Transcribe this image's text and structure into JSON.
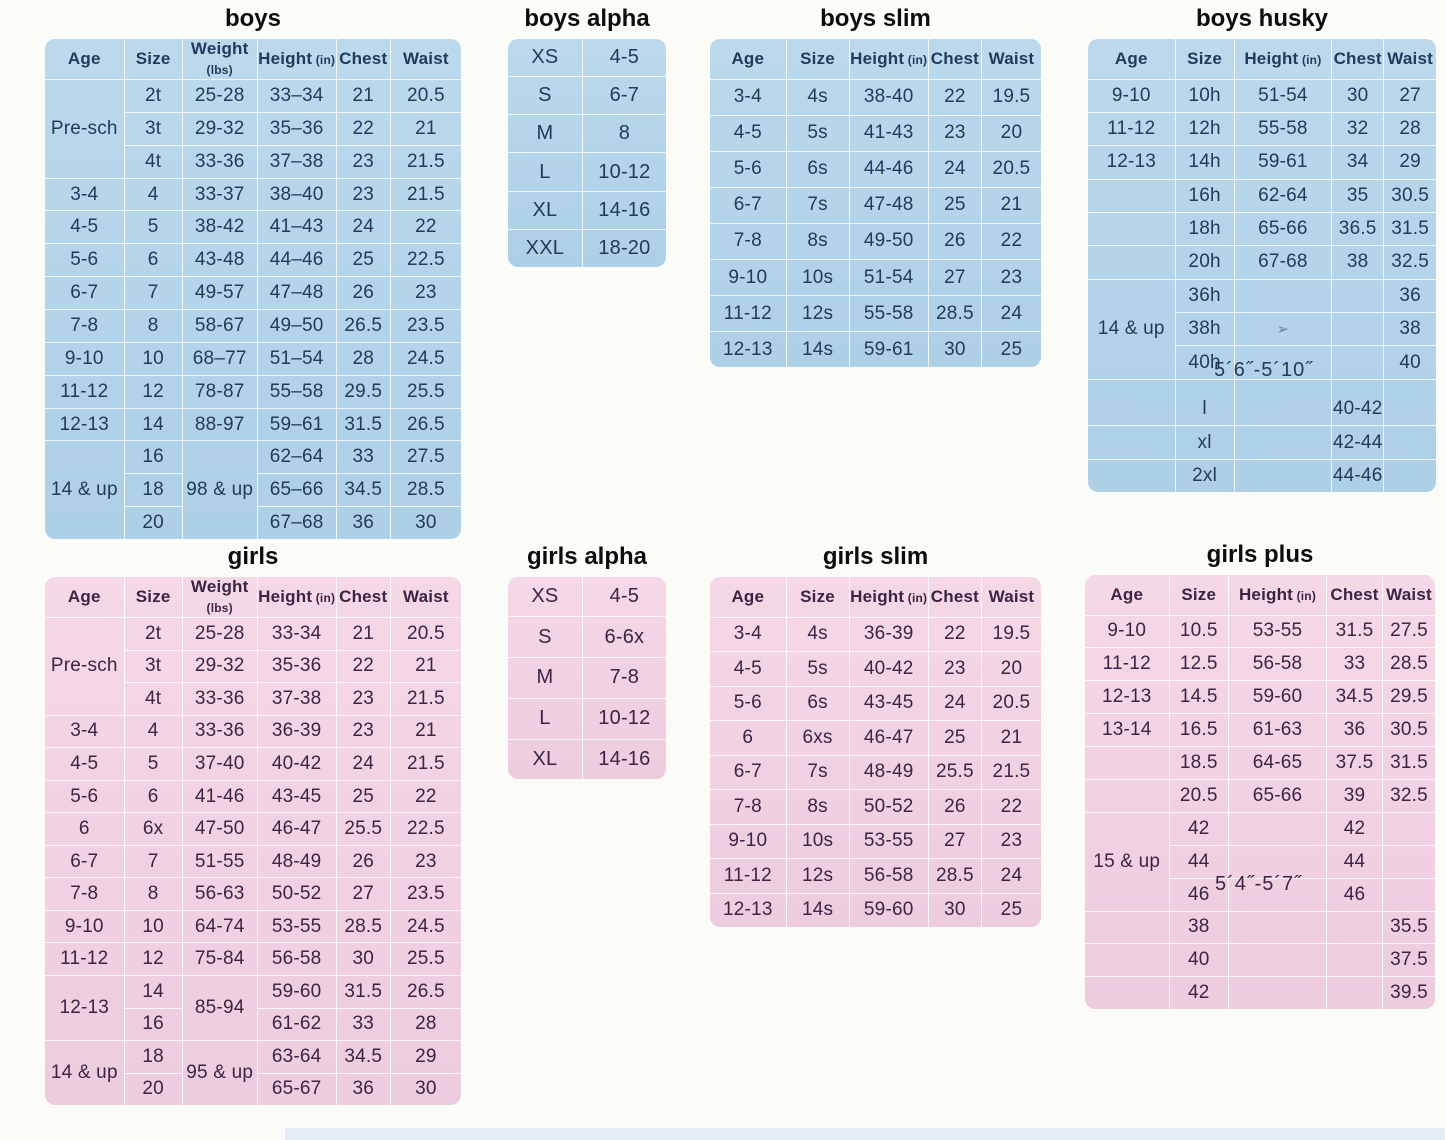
{
  "annotations": {
    "boys_husky_height_range": "5´6˝-5´10˝",
    "girls_plus_height_range": "5´4˝-5´7˝"
  },
  "tables": {
    "boys": {
      "title": "boys",
      "header": [
        {
          "t": "Age"
        },
        {
          "t": "Size"
        },
        {
          "t": "Weight",
          "u": "(lbs)"
        },
        {
          "t": "Height",
          "u": "(in)"
        },
        {
          "t": "Chest"
        },
        {
          "t": "Waist"
        }
      ],
      "colw": [
        "19%",
        "14%",
        "18%",
        "19%",
        "13%",
        "17%"
      ],
      "rows": [
        [
          {
            "t": "Pre-sch",
            "rs": 3
          },
          "2t",
          "25-28",
          "33–34",
          "21",
          "20.5"
        ],
        [
          "3t",
          "29-32",
          "35–36",
          "22",
          "21"
        ],
        [
          "4t",
          "33-36",
          "37–38",
          "23",
          "21.5"
        ],
        [
          "3-4",
          "4",
          "33-37",
          "38–40",
          "23",
          "21.5"
        ],
        [
          "4-5",
          "5",
          "38-42",
          "41–43",
          "24",
          "22"
        ],
        [
          "5-6",
          "6",
          "43-48",
          "44–46",
          "25",
          "22.5"
        ],
        [
          "6-7",
          "7",
          "49-57",
          "47–48",
          "26",
          "23"
        ],
        [
          "7-8",
          "8",
          "58-67",
          "49–50",
          "26.5",
          "23.5"
        ],
        [
          "9-10",
          "10",
          "68–77",
          "51–54",
          "28",
          "24.5"
        ],
        [
          "11-12",
          "12",
          "78-87",
          "55–58",
          "29.5",
          "25.5"
        ],
        [
          "12-13",
          "14",
          "88-97",
          "59–61",
          "31.5",
          "26.5"
        ],
        [
          {
            "t": "14 & up",
            "rs": 3,
            "cls": "nb"
          },
          "16",
          {
            "t": "98 & up",
            "rs": 3,
            "cls": "nb"
          },
          "62–64",
          "33",
          "27.5"
        ],
        [
          "18",
          "65–66",
          "34.5",
          "28.5"
        ],
        [
          "20",
          "67–68",
          "36",
          "30"
        ]
      ]
    },
    "boys_alpha": {
      "title": "boys alpha",
      "colw": [
        "47%",
        "53%"
      ],
      "rows": [
        [
          "XS",
          "4-5"
        ],
        [
          "S",
          "6-7"
        ],
        [
          "M",
          "8"
        ],
        [
          "L",
          "10-12"
        ],
        [
          "XL",
          "14-16"
        ],
        [
          "XXL",
          "18-20"
        ]
      ]
    },
    "boys_slim": {
      "title": "boys slim",
      "header": [
        {
          "t": "Age"
        },
        {
          "t": "Size"
        },
        {
          "t": "Height",
          "u": "(in)"
        },
        {
          "t": "Chest"
        },
        {
          "t": "Waist"
        }
      ],
      "colw": [
        "23%",
        "19%",
        "24%",
        "16%",
        "18%"
      ],
      "rows": [
        [
          "3-4",
          "4s",
          "38-40",
          "22",
          "19.5"
        ],
        [
          "4-5",
          "5s",
          "41-43",
          "23",
          "20"
        ],
        [
          "5-6",
          "6s",
          "44-46",
          "24",
          "20.5"
        ],
        [
          "6-7",
          "7s",
          "47-48",
          "25",
          "21"
        ],
        [
          "7-8",
          "8s",
          "49-50",
          "26",
          "22"
        ],
        [
          "9-10",
          "10s",
          "51-54",
          "27",
          "23"
        ],
        [
          "11-12",
          "12s",
          "55-58",
          "28.5",
          "24"
        ],
        [
          "12-13",
          "14s",
          "59-61",
          "30",
          "25"
        ]
      ]
    },
    "boys_husky": {
      "title": "boys husky",
      "header": [
        {
          "t": "Age"
        },
        {
          "t": "Size"
        },
        {
          "t": "Height",
          "u": "(in)"
        },
        {
          "t": "Chest"
        },
        {
          "t": "Waist"
        }
      ],
      "colw": [
        "25%",
        "17%",
        "28%",
        "15%",
        "15%"
      ],
      "rows": [
        [
          "9-10",
          "10h",
          "51-54",
          "30",
          "27"
        ],
        [
          "11-12",
          "12h",
          "55-58",
          "32",
          "28"
        ],
        [
          "12-13",
          "14h",
          "59-61",
          "34",
          "29"
        ],
        [
          "",
          "16h",
          "62-64",
          "35",
          "30.5"
        ],
        [
          "",
          "18h",
          "65-66",
          "36.5",
          "31.5"
        ],
        [
          "",
          "20h",
          "67-68",
          "38",
          "32.5"
        ],
        [
          {
            "t": "14 & up",
            "rs": 3
          },
          "36h",
          "",
          "",
          "36"
        ],
        [
          "38h",
          {
            "t": "➢",
            "cls": "mark",
            "name": "pen-mark-icon"
          },
          "",
          "38"
        ],
        [
          "40h",
          "",
          "",
          "40"
        ],
        {
          "cls": "spacer",
          "cells": [
            "",
            "",
            "",
            "",
            ""
          ]
        },
        [
          "",
          "l",
          "",
          "40-42",
          ""
        ],
        [
          "",
          "xl",
          "",
          "42-44",
          ""
        ],
        [
          "",
          "2xl",
          "",
          "44-46",
          ""
        ]
      ]
    },
    "girls": {
      "title": "girls",
      "header": [
        {
          "t": "Age"
        },
        {
          "t": "Size"
        },
        {
          "t": "Weight",
          "u": "(lbs)"
        },
        {
          "t": "Height",
          "u": "(in)"
        },
        {
          "t": "Chest"
        },
        {
          "t": "Waist"
        }
      ],
      "colw": [
        "19%",
        "14%",
        "18%",
        "19%",
        "13%",
        "17%"
      ],
      "rows": [
        [
          {
            "t": "Pre-sch",
            "rs": 3
          },
          "2t",
          "25-28",
          "33-34",
          "21",
          "20.5"
        ],
        [
          "3t",
          "29-32",
          "35-36",
          "22",
          "21"
        ],
        [
          "4t",
          "33-36",
          "37-38",
          "23",
          "21.5"
        ],
        [
          "3-4",
          "4",
          "33-36",
          "36-39",
          "23",
          "21"
        ],
        [
          "4-5",
          "5",
          "37-40",
          "40-42",
          "24",
          "21.5"
        ],
        [
          "5-6",
          "6",
          "41-46",
          "43-45",
          "25",
          "22"
        ],
        [
          "6",
          "6x",
          "47-50",
          "46-47",
          "25.5",
          "22.5"
        ],
        [
          "6-7",
          "7",
          "51-55",
          "48-49",
          "26",
          "23"
        ],
        [
          "7-8",
          "8",
          "56-63",
          "50-52",
          "27",
          "23.5"
        ],
        [
          "9-10",
          "10",
          "64-74",
          "53-55",
          "28.5",
          "24.5"
        ],
        [
          "11-12",
          "12",
          "75-84",
          "56-58",
          "30",
          "25.5"
        ],
        [
          {
            "t": "12-13",
            "rs": 2
          },
          "14",
          {
            "t": "85-94",
            "rs": 2
          },
          "59-60",
          "31.5",
          "26.5"
        ],
        [
          "16",
          "61-62",
          "33",
          "28"
        ],
        [
          {
            "t": "14 & up",
            "rs": 2,
            "cls": "nb"
          },
          "18",
          {
            "t": "95 & up",
            "rs": 2,
            "cls": "nb"
          },
          "63-64",
          "34.5",
          "29"
        ],
        [
          "20",
          "65-67",
          "36",
          "30"
        ]
      ]
    },
    "girls_alpha": {
      "title": "girls alpha",
      "colw": [
        "47%",
        "53%"
      ],
      "rows": [
        [
          "XS",
          "4-5"
        ],
        [
          "S",
          "6-6x"
        ],
        [
          "M",
          "7-8"
        ],
        [
          "L",
          "10-12"
        ],
        [
          "XL",
          "14-16"
        ]
      ]
    },
    "girls_slim": {
      "title": "girls slim",
      "header": [
        {
          "t": "Age"
        },
        {
          "t": "Size"
        },
        {
          "t": "Height",
          "u": "(in)"
        },
        {
          "t": "Chest"
        },
        {
          "t": "Waist"
        }
      ],
      "colw": [
        "23%",
        "19%",
        "24%",
        "16%",
        "18%"
      ],
      "rows": [
        [
          "3-4",
          "4s",
          "36-39",
          "22",
          "19.5"
        ],
        [
          "4-5",
          "5s",
          "40-42",
          "23",
          "20"
        ],
        [
          "5-6",
          "6s",
          "43-45",
          "24",
          "20.5"
        ],
        [
          "6",
          "6xs",
          "46-47",
          "25",
          "21"
        ],
        [
          "6-7",
          "7s",
          "48-49",
          "25.5",
          "21.5"
        ],
        [
          "7-8",
          "8s",
          "50-52",
          "26",
          "22"
        ],
        [
          "9-10",
          "10s",
          "53-55",
          "27",
          "23"
        ],
        [
          "11-12",
          "12s",
          "56-58",
          "28.5",
          "24"
        ],
        [
          "12-13",
          "14s",
          "59-60",
          "30",
          "25"
        ]
      ]
    },
    "girls_plus": {
      "title": "girls plus",
      "header": [
        {
          "t": "Age"
        },
        {
          "t": "Size"
        },
        {
          "t": "Height",
          "u": "(in)"
        },
        {
          "t": "Chest"
        },
        {
          "t": "Waist"
        }
      ],
      "colw": [
        "24%",
        "17%",
        "28%",
        "16%",
        "15%"
      ],
      "rows": [
        [
          "9-10",
          "10.5",
          "53-55",
          "31.5",
          "27.5"
        ],
        [
          "11-12",
          "12.5",
          "56-58",
          "33",
          "28.5"
        ],
        [
          "12-13",
          "14.5",
          "59-60",
          "34.5",
          "29.5"
        ],
        [
          "13-14",
          "16.5",
          "61-63",
          "36",
          "30.5"
        ],
        [
          "",
          "18.5",
          "64-65",
          "37.5",
          "31.5"
        ],
        [
          "",
          "20.5",
          "65-66",
          "39",
          "32.5"
        ],
        [
          {
            "t": "15 & up",
            "rs": 3
          },
          "42",
          "",
          "42",
          ""
        ],
        [
          "44",
          "",
          "44",
          ""
        ],
        [
          "46",
          "",
          "46",
          ""
        ],
        [
          "",
          "38",
          "",
          "",
          "35.5"
        ],
        [
          "",
          "40",
          "",
          "",
          "37.5"
        ],
        [
          "",
          "42",
          "",
          "",
          "39.5"
        ]
      ]
    }
  }
}
